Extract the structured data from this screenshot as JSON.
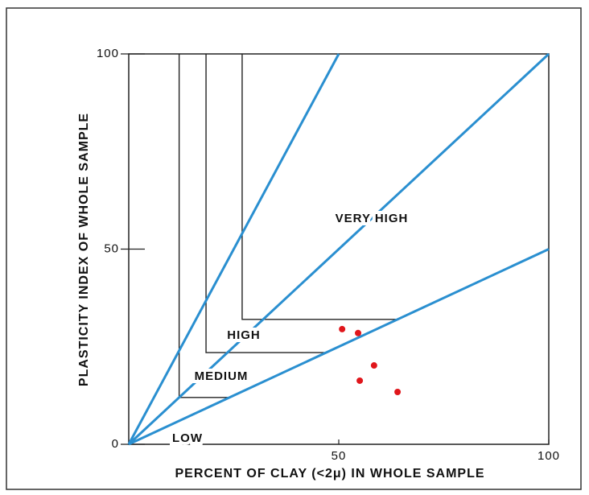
{
  "chart_data": {
    "type": "scatter",
    "xlabel": "PERCENT OF CLAY (<2μ) IN WHOLE SAMPLE",
    "ylabel": "PLASTICITY INDEX OF WHOLE SAMPLE",
    "xlim": [
      0,
      100
    ],
    "ylim": [
      0,
      100
    ],
    "xticks": [
      50,
      100
    ],
    "yticks": [
      0,
      50,
      100
    ],
    "lines": [
      {
        "color": "#2a8fd0",
        "x": [
          0,
          50
        ],
        "values": [
          0,
          100
        ]
      },
      {
        "color": "#2a8fd0",
        "x": [
          0,
          100
        ],
        "values": [
          0,
          100
        ]
      },
      {
        "color": "#2a8fd0",
        "x": [
          0,
          100
        ],
        "values": [
          0,
          50
        ]
      }
    ],
    "boundaries": [
      {
        "color": "#222222",
        "x": [
          12,
          12,
          24
        ],
        "values": [
          100,
          12,
          12
        ]
      },
      {
        "color": "#222222",
        "x": [
          18.4,
          18.4,
          47
        ],
        "values": [
          100,
          23.5,
          23.5
        ]
      },
      {
        "color": "#222222",
        "x": [
          27,
          27,
          64
        ],
        "values": [
          100,
          32,
          32
        ]
      }
    ],
    "series": [
      {
        "color": "#e0161b",
        "x": [
          50.8,
          54.6,
          58.4,
          55,
          64
        ],
        "values": [
          29.5,
          28.5,
          20.2,
          16.3,
          13.4
        ]
      }
    ],
    "annotations": [
      "LOW",
      "MEDIUM",
      "HIGH",
      "VERY HIGH"
    ]
  }
}
